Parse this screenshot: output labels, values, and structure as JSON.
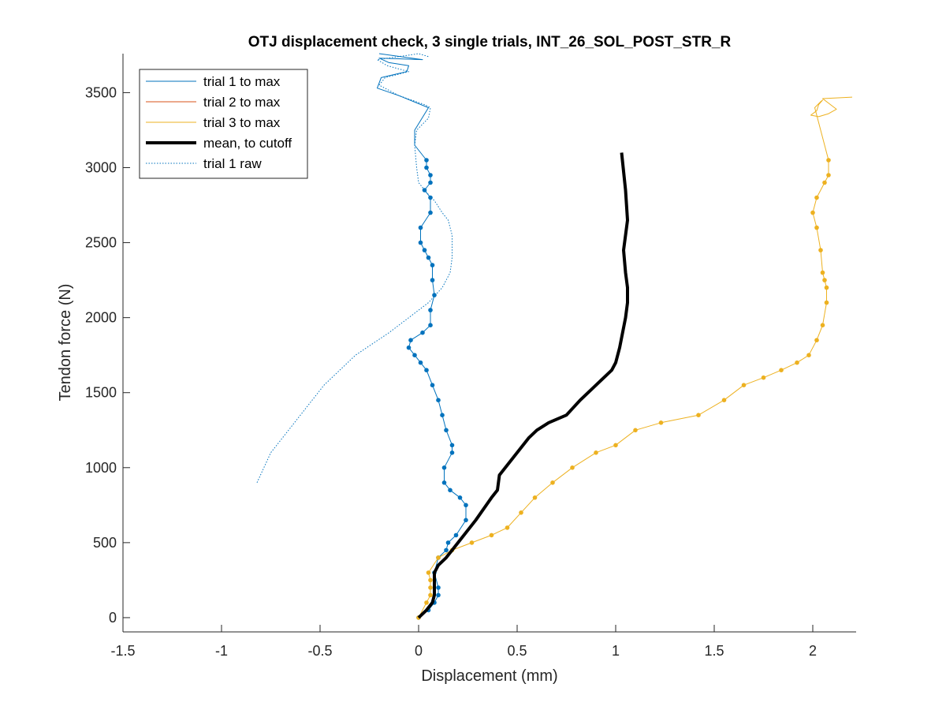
{
  "chart_data": {
    "type": "line",
    "title": "OTJ displacement check, 3 single trials, INT_26_SOL_POST_STR_R",
    "xlabel": "Displacement (mm)",
    "ylabel": "Tendon force (N)",
    "xlim": [
      -1.5,
      2.22
    ],
    "ylim": [
      -95,
      3760
    ],
    "xticks": [
      -1.5,
      -1,
      -0.5,
      0,
      0.5,
      1,
      1.5,
      2
    ],
    "xtick_labels": [
      "-1.5",
      "-1",
      "-0.5",
      "0",
      "0.5",
      "1",
      "1.5",
      "2"
    ],
    "yticks": [
      0,
      500,
      1000,
      1500,
      2000,
      2500,
      3000,
      3500
    ],
    "ytick_labels": [
      "0",
      "500",
      "1000",
      "1500",
      "2000",
      "2500",
      "3000",
      "3500"
    ],
    "grid": false,
    "legend_position": "top-left",
    "legend": [
      {
        "label": "trial 1 to max",
        "color": "#0072BD",
        "style": "solid",
        "width": 1
      },
      {
        "label": "trial 2 to max",
        "color": "#D95319",
        "style": "solid",
        "width": 1
      },
      {
        "label": "trial 3 to max",
        "color": "#EDB120",
        "style": "solid",
        "width": 1
      },
      {
        "label": "mean, to cutoff",
        "color": "#000000",
        "style": "solid",
        "width": 4
      },
      {
        "label": "trial 1 raw",
        "color": "#0072BD",
        "style": "dotted",
        "width": 1
      }
    ],
    "series": [
      {
        "name": "trial 1 to max",
        "color": "#0072BD",
        "style": "solid",
        "markers_until_y": 3050,
        "x": [
          0,
          0.05,
          0.08,
          0.1,
          0.1,
          0.08,
          0.1,
          0.14,
          0.15,
          0.19,
          0.24,
          0.24,
          0.21,
          0.16,
          0.13,
          0.13,
          0.17,
          0.17,
          0.14,
          0.12,
          0.1,
          0.07,
          0.04,
          0.01,
          -0.02,
          -0.05,
          -0.04,
          0.02,
          0.06,
          0.06,
          0.08,
          0.07,
          0.07,
          0.05,
          0.03,
          0.01,
          0.01,
          0.06,
          0.06,
          0.03,
          0.06,
          0.06,
          0.04,
          0.04,
          -0.02,
          -0.02,
          0.05,
          -0.1,
          -0.21,
          -0.19,
          -0.06,
          -0.05,
          -0.15,
          -0.2,
          0.02,
          -0.2
        ],
        "y": [
          0,
          50,
          100,
          150,
          200,
          300,
          400,
          450,
          500,
          550,
          650,
          750,
          800,
          850,
          900,
          1000,
          1100,
          1150,
          1250,
          1350,
          1450,
          1550,
          1650,
          1700,
          1750,
          1800,
          1850,
          1900,
          1950,
          2050,
          2150,
          2250,
          2350,
          2400,
          2450,
          2500,
          2600,
          2700,
          2800,
          2850,
          2900,
          2950,
          3000,
          3050,
          3150,
          3250,
          3400,
          3480,
          3530,
          3600,
          3640,
          3680,
          3700,
          3730,
          3720,
          3760
        ]
      },
      {
        "name": "trial 2 to max",
        "color": "#D95319",
        "style": "solid",
        "x": [],
        "y": []
      },
      {
        "name": "trial 3 to max",
        "color": "#EDB120",
        "style": "solid",
        "markers_until_y": 3100,
        "x": [
          0,
          0.04,
          0.06,
          0.06,
          0.06,
          0.05,
          0.1,
          0.17,
          0.27,
          0.37,
          0.45,
          0.52,
          0.59,
          0.68,
          0.78,
          0.9,
          1.0,
          1.1,
          1.23,
          1.42,
          1.55,
          1.65,
          1.75,
          1.84,
          1.92,
          1.98,
          2.02,
          2.05,
          2.07,
          2.07,
          2.06,
          2.05,
          2.04,
          2.02,
          2.0,
          2.02,
          2.06,
          2.08,
          2.08,
          2.06,
          2.04,
          2.02,
          2.01,
          2.04,
          2.05,
          2.03,
          2.02,
          1.99,
          2.03,
          2.08,
          2.12,
          2.05,
          2.2
        ],
        "y": [
          0,
          100,
          150,
          200,
          250,
          300,
          400,
          450,
          500,
          550,
          600,
          700,
          800,
          900,
          1000,
          1100,
          1150,
          1250,
          1300,
          1350,
          1450,
          1550,
          1600,
          1650,
          1700,
          1750,
          1850,
          1950,
          2100,
          2200,
          2250,
          2300,
          2450,
          2600,
          2700,
          2800,
          2900,
          2950,
          3050,
          3150,
          3250,
          3350,
          3400,
          3440,
          3450,
          3420,
          3380,
          3350,
          3340,
          3360,
          3390,
          3460,
          3470
        ]
      },
      {
        "name": "mean, to cutoff",
        "color": "#000000",
        "style": "solid",
        "x": [
          0,
          0.04,
          0.07,
          0.08,
          0.08,
          0.1,
          0.14,
          0.2,
          0.29,
          0.37,
          0.4,
          0.41,
          0.44,
          0.5,
          0.56,
          0.6,
          0.66,
          0.75,
          0.82,
          0.9,
          0.98,
          1.0,
          1.02,
          1.05,
          1.06,
          1.06,
          1.05,
          1.04,
          1.06,
          1.05,
          1.03
        ],
        "y": [
          0,
          50,
          100,
          150,
          300,
          350,
          400,
          500,
          650,
          800,
          850,
          950,
          1000,
          1100,
          1200,
          1250,
          1300,
          1350,
          1450,
          1550,
          1650,
          1700,
          1800,
          2000,
          2100,
          2200,
          2300,
          2450,
          2650,
          2850,
          3100
        ]
      },
      {
        "name": "trial 1 raw",
        "color": "#0072BD",
        "style": "dotted",
        "x": [
          -0.82,
          -0.75,
          -0.63,
          -0.48,
          -0.32,
          -0.15,
          -0.05,
          0.05,
          0.12,
          0.16,
          0.17,
          0.17,
          0.15,
          0.12,
          0.08,
          0.05,
          0.0,
          -0.01,
          -0.02,
          -0.01,
          0.05,
          0.06,
          0.03,
          -0.1,
          -0.2,
          -0.17,
          -0.05,
          -0.16,
          -0.21,
          -0.05,
          0.0,
          0.05
        ],
        "y": [
          900,
          1100,
          1300,
          1550,
          1750,
          1900,
          2000,
          2100,
          2200,
          2300,
          2400,
          2550,
          2650,
          2700,
          2780,
          2820,
          2900,
          3000,
          3150,
          3250,
          3330,
          3400,
          3420,
          3480,
          3550,
          3600,
          3640,
          3680,
          3720,
          3750,
          3760,
          3740
        ]
      }
    ]
  }
}
